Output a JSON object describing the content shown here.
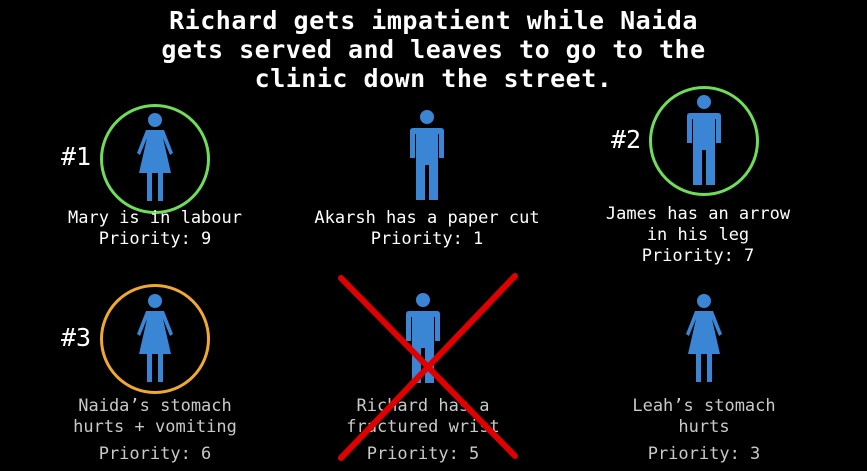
{
  "headline": {
    "line1": "Richard gets impatient while Naida",
    "line2": "gets served and leaves to go to the",
    "line3": "clinic down the street."
  },
  "colors": {
    "person": "#3a85d4",
    "ring_green": "#6fdc5a",
    "ring_orange": "#f0a830",
    "cross": "#e00000",
    "faded_text": "#c9c9c9"
  },
  "patients": [
    {
      "rank": "#1",
      "line1": "Mary is in labour",
      "line2": "",
      "priority": "Priority: 9",
      "icon": "female-person-icon"
    },
    {
      "rank": "",
      "line1": "Akarsh has a paper cut",
      "line2": "",
      "priority": "Priority: 1",
      "icon": "male-person-icon"
    },
    {
      "rank": "#2",
      "line1": "James has an arrow",
      "line2": "in his leg",
      "priority": "Priority: 7",
      "icon": "male-person-icon"
    },
    {
      "rank": "#3",
      "line1": "Naida’s stomach",
      "line2": "hurts + vomiting",
      "priority": "Priority: 6",
      "icon": "female-person-icon"
    },
    {
      "rank": "",
      "line1": "Richard has a",
      "line2": "fractured wrist",
      "priority": "Priority: 5",
      "icon": "male-person-icon",
      "removed": true
    },
    {
      "rank": "",
      "line1": "Leah’s stomach",
      "line2": "hurts",
      "priority": "Priority: 3",
      "icon": "female-person-icon"
    }
  ]
}
